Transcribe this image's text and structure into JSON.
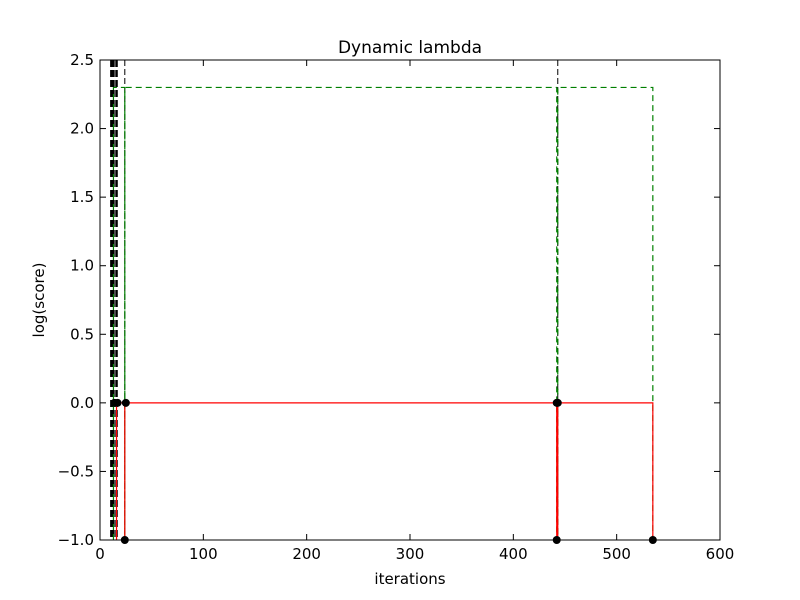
{
  "chart_data": {
    "type": "line",
    "title": "Dynamic lambda",
    "xlabel": "iterations",
    "ylabel": "log(score)",
    "xlim": [
      0,
      600
    ],
    "ylim": [
      -1.0,
      2.5
    ],
    "xticks": [
      0,
      100,
      200,
      300,
      400,
      500,
      600
    ],
    "xtick_labels": [
      "0",
      "100",
      "200",
      "300",
      "400",
      "500",
      "600"
    ],
    "yticks": [
      -1.0,
      -0.5,
      0.0,
      0.5,
      1.0,
      1.5,
      2.0,
      2.5
    ],
    "ytick_labels": [
      "−1.0",
      "−0.5",
      "0.0",
      "0.5",
      "1.0",
      "1.5",
      "2.0",
      "2.5"
    ],
    "grid": false,
    "series": [
      {
        "name": "green-dashed",
        "color": "#008000",
        "style": "dashed",
        "x": [
          13,
          13,
          24,
          24,
          24,
          442,
          442,
          443,
          443,
          443,
          535,
          535
        ],
        "y": [
          -1.0,
          2.3,
          2.3,
          -1.0,
          2.3,
          2.3,
          -1.0,
          -1.0,
          2.3,
          2.3,
          2.3,
          -1.0
        ]
      },
      {
        "name": "red-solid",
        "color": "#ff0000",
        "style": "solid",
        "x": [
          16,
          16,
          24,
          24,
          24,
          442,
          442,
          443,
          443,
          443,
          535,
          535
        ],
        "y": [
          -1.0,
          0.0,
          0.0,
          -1.0,
          0.0,
          0.0,
          -1.0,
          -1.0,
          0.0,
          0.0,
          0.0,
          -1.0
        ]
      }
    ],
    "markers": [
      {
        "x": 14,
        "y": 0.0
      },
      {
        "x": 17,
        "y": 0.0
      },
      {
        "x": 25,
        "y": 0.0
      },
      {
        "x": 24,
        "y": -1.0
      },
      {
        "x": 442,
        "y": 0.0
      },
      {
        "x": 443,
        "y": 0.0
      },
      {
        "x": 442,
        "y": -1.0
      },
      {
        "x": 535,
        "y": -1.0
      }
    ],
    "vlines": [
      {
        "x": 11,
        "color": "#000000",
        "style": "thick-dashed"
      },
      {
        "x": 13,
        "color": "#000000",
        "style": "thick-dashed"
      },
      {
        "x": 16,
        "color": "#000000",
        "style": "thick-dashed"
      },
      {
        "x": 24,
        "color": "#000000",
        "style": "dashed"
      },
      {
        "x": 443,
        "color": "#000000",
        "style": "dashed"
      }
    ]
  }
}
